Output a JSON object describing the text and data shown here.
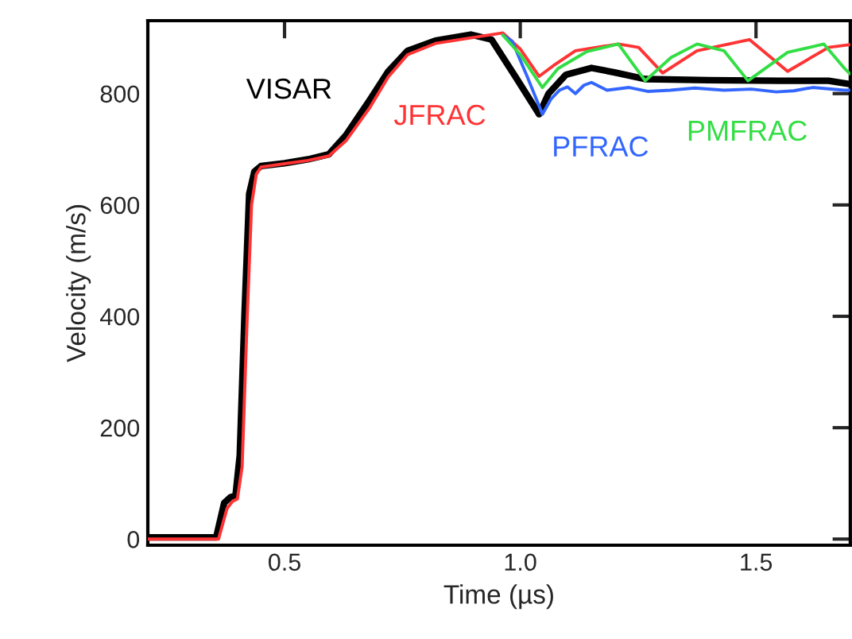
{
  "chart_data": {
    "type": "line",
    "xlabel": "Time (µs)",
    "ylabel": "Velocity (m/s)",
    "xlim": [
      0.21,
      1.7
    ],
    "ylim": [
      -11,
      931
    ],
    "xticks": [
      {
        "value": 0.5,
        "label": "0.5"
      },
      {
        "value": 1.0,
        "label": "1.0"
      },
      {
        "value": 1.5,
        "label": "1.5"
      }
    ],
    "yticks": [
      0,
      200,
      400,
      600,
      800
    ],
    "grid": false,
    "legend": false,
    "marker": "none",
    "line_style": "solid",
    "series": [
      {
        "name": "VISAR",
        "color": "#000000",
        "x": [
          0.21,
          0.355,
          0.372,
          0.385,
          0.396,
          0.405,
          0.415,
          0.425,
          0.436,
          0.45,
          0.5,
          0.55,
          0.594,
          0.63,
          0.681,
          0.72,
          0.761,
          0.82,
          0.895,
          0.939,
          0.99,
          1.04,
          1.06,
          1.097,
          1.151,
          1.2,
          1.265,
          1.4,
          1.55,
          1.654,
          1.7
        ],
        "values": [
          3,
          3,
          65,
          75,
          78,
          150,
          400,
          620,
          660,
          670,
          675,
          682,
          691,
          725,
          789,
          840,
          877,
          895,
          906,
          897,
          830,
          763,
          800,
          834,
          846,
          838,
          826,
          824,
          823,
          823,
          817
        ]
      },
      {
        "name": "JFRAC",
        "color": "#ff3333",
        "x": [
          0.21,
          0.36,
          0.378,
          0.39,
          0.4,
          0.41,
          0.42,
          0.43,
          0.44,
          0.45,
          0.5,
          0.55,
          0.594,
          0.63,
          0.681,
          0.72,
          0.761,
          0.82,
          0.895,
          0.963,
          1.0,
          1.04,
          1.07,
          1.117,
          1.208,
          1.251,
          1.302,
          1.375,
          1.486,
          1.567,
          1.654,
          1.7
        ],
        "values": [
          0,
          0,
          55,
          68,
          72,
          130,
          380,
          600,
          655,
          668,
          674,
          680,
          688,
          715,
          775,
          830,
          870,
          890,
          900,
          909,
          880,
          831,
          850,
          877,
          889,
          883,
          837,
          877,
          897,
          840,
          883,
          888
        ]
      },
      {
        "name": "PFRAC",
        "color": "#3366ff",
        "x": [
          0.963,
          0.983,
          1.015,
          1.047,
          1.065,
          1.083,
          1.1,
          1.117,
          1.135,
          1.151,
          1.184,
          1.231,
          1.27,
          1.318,
          1.37,
          1.432,
          1.49,
          1.543,
          1.58,
          1.62,
          1.687,
          1.7
        ],
        "values": [
          905,
          894,
          830,
          763,
          790,
          806,
          812,
          800,
          815,
          820,
          806,
          811,
          804,
          806,
          810,
          806,
          808,
          803,
          805,
          811,
          806,
          806
        ]
      },
      {
        "name": "PMFRAC",
        "color": "#33dd44",
        "x": [
          0.963,
          1.0,
          1.047,
          1.08,
          1.14,
          1.208,
          1.265,
          1.32,
          1.375,
          1.432,
          1.483,
          1.567,
          1.644,
          1.687,
          1.7
        ],
        "values": [
          905,
          870,
          811,
          845,
          875,
          889,
          823,
          865,
          889,
          877,
          823,
          874,
          889,
          846,
          835
        ]
      }
    ]
  }
}
